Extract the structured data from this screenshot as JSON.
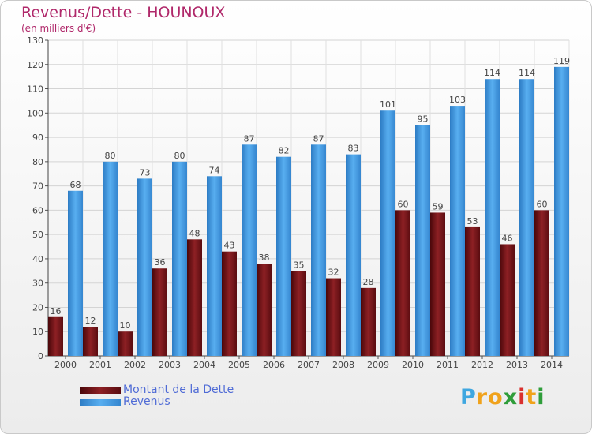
{
  "header": {
    "title": "Revenus/Dette - HOUNOUX",
    "subtitle": "(en milliers d'€)"
  },
  "chart_data": {
    "type": "bar",
    "categories": [
      "2000",
      "2001",
      "2002",
      "2003",
      "2004",
      "2005",
      "2006",
      "2007",
      "2008",
      "2009",
      "2010",
      "2011",
      "2012",
      "2013",
      "2014"
    ],
    "series": [
      {
        "name": "Montant de la Dette",
        "color": "#7a1216",
        "values": [
          16,
          12,
          10,
          36,
          48,
          43,
          38,
          35,
          32,
          28,
          60,
          59,
          53,
          46,
          60
        ]
      },
      {
        "name": "Revenus",
        "color": "#3f95dd",
        "values": [
          68,
          80,
          73,
          80,
          74,
          87,
          82,
          87,
          83,
          101,
          95,
          103,
          114,
          114,
          119
        ]
      }
    ],
    "ylim": [
      0,
      130
    ],
    "yticks": [
      0,
      10,
      20,
      30,
      40,
      50,
      60,
      70,
      80,
      90,
      100,
      110,
      120,
      130
    ],
    "grid": true,
    "legend_position": "bottom-left"
  },
  "legend": {
    "debt_label": "Montant de la Dette",
    "revenue_label": "Revenus"
  },
  "logo": {
    "letters": [
      "P",
      "r",
      "o",
      "x",
      "i",
      "t",
      "i"
    ],
    "colors": [
      "#3fa7e0",
      "#f0a21b",
      "#f0a21b",
      "#2f9d3a",
      "#d9302e",
      "#f0a21b",
      "#2f9d3a"
    ]
  }
}
